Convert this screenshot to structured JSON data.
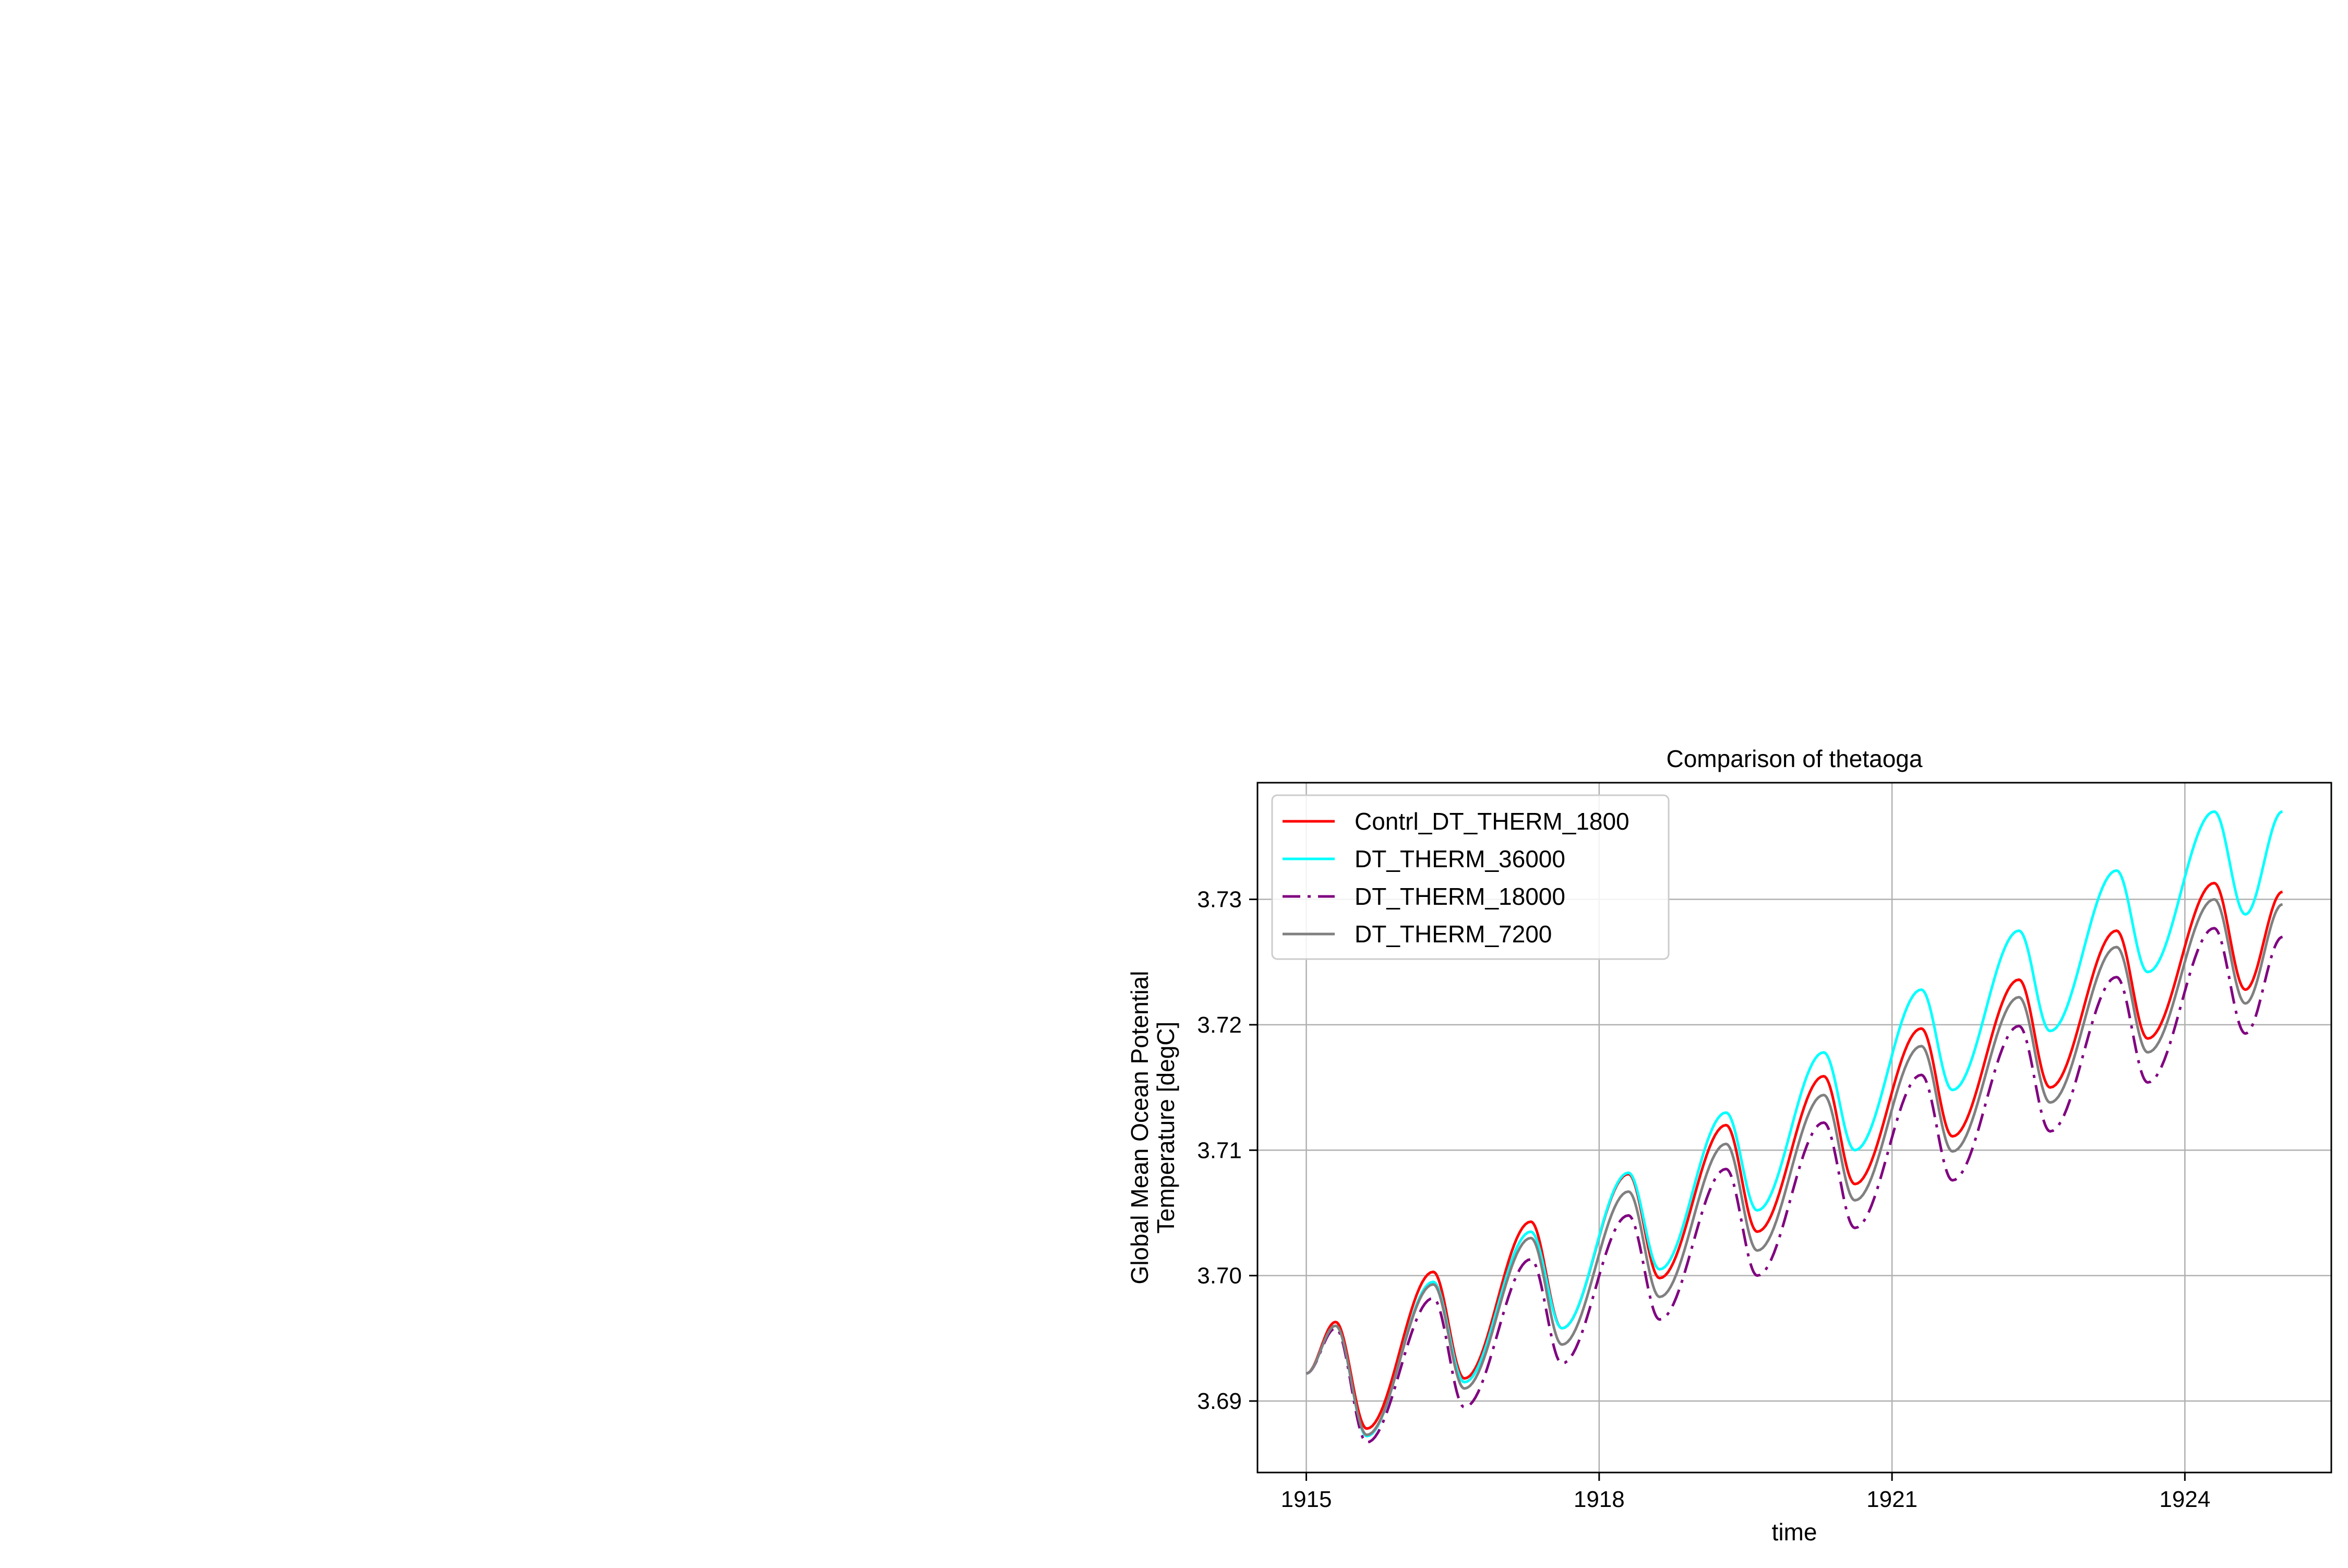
{
  "chart_data": {
    "type": "line",
    "title": "Comparison of thetaoga",
    "xlabel": "time",
    "ylabel_lines": [
      "Global Mean Ocean Potential",
      "Temperature [degC]"
    ],
    "xlim": [
      1914.5,
      1925.5
    ],
    "ylim": [
      3.6843,
      3.7393
    ],
    "xticks": [
      1915,
      1918,
      1921,
      1924
    ],
    "xtick_labels": [
      "1915",
      "1918",
      "1921",
      "1924"
    ],
    "yticks": [
      3.69,
      3.7,
      3.71,
      3.72,
      3.73
    ],
    "ytick_labels": [
      "3.69",
      "3.70",
      "3.71",
      "3.72",
      "3.73"
    ],
    "grid": true,
    "legend_position": "top-left",
    "series": [
      {
        "name": "Contrl_DT_THERM_1800",
        "color": "#ff0000",
        "dash": "solid",
        "x": [
          1915.0,
          1915.3,
          1915.62,
          1916.3,
          1916.62,
          1917.3,
          1917.62,
          1918.3,
          1918.62,
          1919.3,
          1919.62,
          1920.3,
          1920.62,
          1921.3,
          1921.62,
          1922.3,
          1922.62,
          1923.3,
          1923.62,
          1924.3,
          1924.62,
          1925.0
        ],
        "y": [
          3.6922,
          3.6963,
          3.6878,
          3.7003,
          3.6918,
          3.7043,
          3.6958,
          3.7081,
          3.6998,
          3.712,
          3.7035,
          3.7159,
          3.7073,
          3.7197,
          3.7111,
          3.7236,
          3.715,
          3.7275,
          3.7189,
          3.7313,
          3.7228,
          3.7306
        ]
      },
      {
        "name": "DT_THERM_36000",
        "color": "#00ffff",
        "dash": "solid",
        "x": [
          1915.0,
          1915.3,
          1915.62,
          1916.3,
          1916.62,
          1917.3,
          1917.62,
          1918.3,
          1918.62,
          1919.3,
          1919.62,
          1920.3,
          1920.62,
          1921.3,
          1921.62,
          1922.3,
          1922.62,
          1923.3,
          1923.62,
          1924.3,
          1924.62,
          1925.0
        ],
        "y": [
          3.6922,
          3.696,
          3.6872,
          3.6995,
          3.6915,
          3.7035,
          3.6958,
          3.7082,
          3.7005,
          3.713,
          3.7052,
          3.7178,
          3.71,
          3.7228,
          3.7148,
          3.7275,
          3.7195,
          3.7323,
          3.7242,
          3.737,
          3.7288,
          3.737
        ]
      },
      {
        "name": "DT_THERM_18000",
        "color": "#800080",
        "dash": "dashdot",
        "x": [
          1915.0,
          1915.3,
          1915.62,
          1916.3,
          1916.62,
          1917.3,
          1917.62,
          1918.3,
          1918.62,
          1919.3,
          1919.62,
          1920.3,
          1920.62,
          1921.3,
          1921.62,
          1922.3,
          1922.62,
          1923.3,
          1923.62,
          1924.3,
          1924.62,
          1925.0
        ],
        "y": [
          3.6922,
          3.6958,
          3.6867,
          3.6982,
          3.6895,
          3.7013,
          3.693,
          3.7048,
          3.6965,
          3.7085,
          3.7,
          3.7122,
          3.7038,
          3.716,
          3.7076,
          3.7199,
          3.7115,
          3.7238,
          3.7154,
          3.7277,
          3.7193,
          3.727
        ]
      },
      {
        "name": "DT_THERM_7200",
        "color": "#808080",
        "dash": "solid",
        "x": [
          1915.0,
          1915.3,
          1915.62,
          1916.3,
          1916.62,
          1917.3,
          1917.62,
          1918.3,
          1918.62,
          1919.3,
          1919.62,
          1920.3,
          1920.62,
          1921.3,
          1921.62,
          1922.3,
          1922.62,
          1923.3,
          1923.62,
          1924.3,
          1924.62,
          1925.0
        ],
        "y": [
          3.6922,
          3.696,
          3.6873,
          3.6993,
          3.691,
          3.703,
          3.6945,
          3.7067,
          3.6983,
          3.7105,
          3.702,
          3.7144,
          3.706,
          3.7183,
          3.7099,
          3.7222,
          3.7138,
          3.7262,
          3.7178,
          3.73,
          3.7217,
          3.7296
        ]
      }
    ]
  }
}
